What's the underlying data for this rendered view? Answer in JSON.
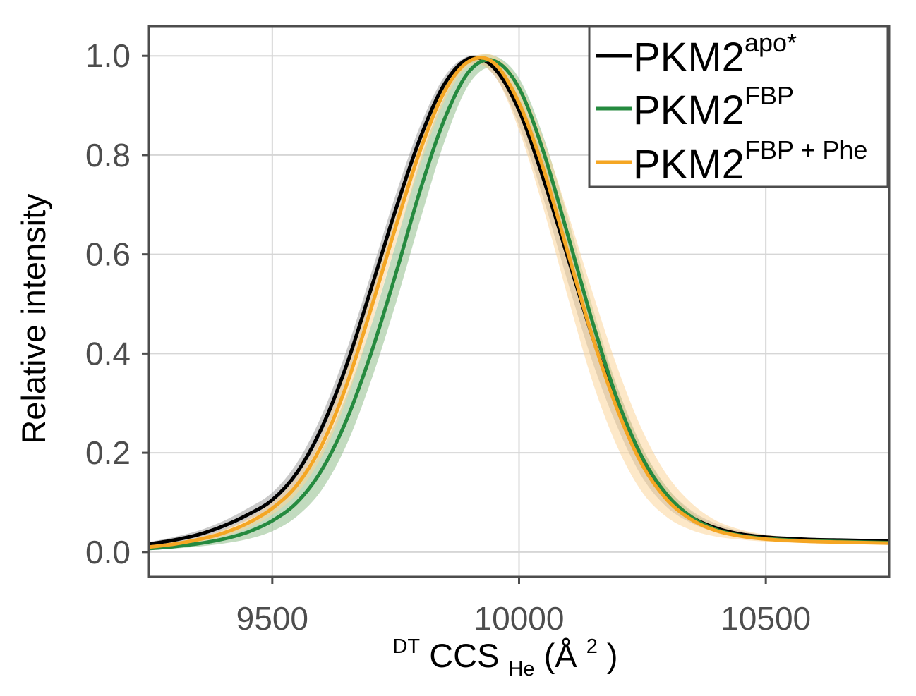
{
  "chart_data": {
    "type": "line",
    "title": "",
    "xlabel": {
      "prefix_sup": "DT",
      "main": "CCS",
      "sub": "He",
      "unit_open": " (Å",
      "unit_sup": "2",
      "unit_close": ")"
    },
    "ylabel": "Relative intensity",
    "xlim": [
      9250,
      10750
    ],
    "ylim": [
      -0.05,
      1.06
    ],
    "xticks": [
      9500,
      10000,
      10500
    ],
    "yticks": [
      0.0,
      0.2,
      0.4,
      0.6,
      0.8,
      1.0
    ],
    "xtick_labels": [
      "9500",
      "10000",
      "10500"
    ],
    "ytick_labels": [
      "0.0",
      "0.2",
      "0.4",
      "0.6",
      "0.8",
      "1.0"
    ],
    "grid": true,
    "legend_position": "top-right",
    "series": [
      {
        "name": "PKM2",
        "name_sup": "apo*",
        "color": "#000000",
        "band_color": "#9e9e9e",
        "x": [
          9250,
          9300,
          9350,
          9400,
          9450,
          9500,
          9550,
          9600,
          9650,
          9700,
          9750,
          9800,
          9850,
          9900,
          9950,
          10000,
          10050,
          10100,
          10150,
          10200,
          10250,
          10300,
          10350,
          10400,
          10450,
          10500,
          10550,
          10600,
          10650,
          10700,
          10750
        ],
        "y": [
          0.016,
          0.024,
          0.035,
          0.052,
          0.075,
          0.105,
          0.16,
          0.25,
          0.375,
          0.53,
          0.69,
          0.835,
          0.945,
          0.995,
          0.975,
          0.89,
          0.75,
          0.59,
          0.43,
          0.29,
          0.18,
          0.11,
          0.07,
          0.048,
          0.036,
          0.03,
          0.027,
          0.025,
          0.024,
          0.023,
          0.022
        ],
        "lower": [
          0.012,
          0.018,
          0.028,
          0.043,
          0.064,
          0.09,
          0.14,
          0.225,
          0.345,
          0.5,
          0.66,
          0.81,
          0.93,
          0.985,
          0.96,
          0.86,
          0.71,
          0.54,
          0.38,
          0.25,
          0.15,
          0.09,
          0.058,
          0.04,
          0.031,
          0.026,
          0.024,
          0.022,
          0.021,
          0.02,
          0.019
        ],
        "upper": [
          0.02,
          0.03,
          0.043,
          0.062,
          0.088,
          0.12,
          0.18,
          0.275,
          0.405,
          0.56,
          0.72,
          0.86,
          0.96,
          1.0,
          0.985,
          0.915,
          0.79,
          0.63,
          0.47,
          0.33,
          0.21,
          0.13,
          0.083,
          0.057,
          0.042,
          0.034,
          0.03,
          0.028,
          0.026,
          0.025,
          0.024
        ]
      },
      {
        "name": "PKM2",
        "name_sup": "FBP",
        "color": "#258a3f",
        "band_color": "#8fbd8a",
        "x": [
          9250,
          9300,
          9350,
          9400,
          9450,
          9500,
          9550,
          9600,
          9650,
          9700,
          9750,
          9800,
          9850,
          9900,
          9950,
          10000,
          10050,
          10100,
          10150,
          10200,
          10250,
          10300,
          10350,
          10400,
          10450,
          10500,
          10550,
          10600,
          10650,
          10700,
          10750
        ],
        "y": [
          0.007,
          0.011,
          0.017,
          0.026,
          0.04,
          0.063,
          0.1,
          0.165,
          0.265,
          0.4,
          0.56,
          0.73,
          0.875,
          0.97,
          0.99,
          0.935,
          0.805,
          0.635,
          0.46,
          0.305,
          0.19,
          0.115,
          0.07,
          0.045,
          0.033,
          0.027,
          0.024,
          0.022,
          0.021,
          0.02,
          0.019
        ],
        "lower": [
          0.004,
          0.007,
          0.011,
          0.017,
          0.026,
          0.042,
          0.072,
          0.125,
          0.215,
          0.345,
          0.5,
          0.67,
          0.83,
          0.945,
          0.975,
          0.91,
          0.77,
          0.6,
          0.43,
          0.28,
          0.17,
          0.1,
          0.062,
          0.04,
          0.029,
          0.024,
          0.021,
          0.019,
          0.018,
          0.017,
          0.016
        ],
        "upper": [
          0.01,
          0.015,
          0.023,
          0.035,
          0.054,
          0.085,
          0.13,
          0.205,
          0.315,
          0.455,
          0.62,
          0.79,
          0.92,
          0.99,
          1.0,
          0.955,
          0.835,
          0.67,
          0.49,
          0.33,
          0.21,
          0.13,
          0.08,
          0.052,
          0.038,
          0.031,
          0.027,
          0.025,
          0.024,
          0.023,
          0.022
        ]
      },
      {
        "name": "PKM2",
        "name_sup": "FBP + Phe",
        "color": "#f5a623",
        "band_color": "#fcd59a",
        "x": [
          9250,
          9300,
          9350,
          9400,
          9450,
          9500,
          9550,
          9600,
          9650,
          9700,
          9750,
          9800,
          9850,
          9900,
          9950,
          10000,
          10050,
          10100,
          10150,
          10200,
          10250,
          10300,
          10350,
          10400,
          10450,
          10500,
          10550,
          10600,
          10650,
          10700,
          10750
        ],
        "y": [
          0.01,
          0.016,
          0.025,
          0.038,
          0.058,
          0.088,
          0.135,
          0.215,
          0.335,
          0.49,
          0.655,
          0.81,
          0.93,
          0.99,
          0.985,
          0.905,
          0.77,
          0.6,
          0.43,
          0.285,
          0.175,
          0.105,
          0.065,
          0.043,
          0.032,
          0.026,
          0.023,
          0.021,
          0.02,
          0.019,
          0.018
        ],
        "lower": [
          0.008,
          0.013,
          0.02,
          0.031,
          0.048,
          0.075,
          0.118,
          0.192,
          0.305,
          0.455,
          0.62,
          0.78,
          0.91,
          0.98,
          0.96,
          0.85,
          0.69,
          0.51,
          0.34,
          0.21,
          0.12,
          0.07,
          0.044,
          0.031,
          0.025,
          0.021,
          0.019,
          0.018,
          0.017,
          0.016,
          0.016
        ],
        "upper": [
          0.012,
          0.019,
          0.03,
          0.045,
          0.068,
          0.1,
          0.152,
          0.238,
          0.365,
          0.525,
          0.69,
          0.84,
          0.95,
          0.995,
          1.0,
          0.945,
          0.83,
          0.68,
          0.52,
          0.37,
          0.245,
          0.155,
          0.098,
          0.063,
          0.045,
          0.035,
          0.03,
          0.027,
          0.025,
          0.024,
          0.023
        ]
      }
    ]
  }
}
